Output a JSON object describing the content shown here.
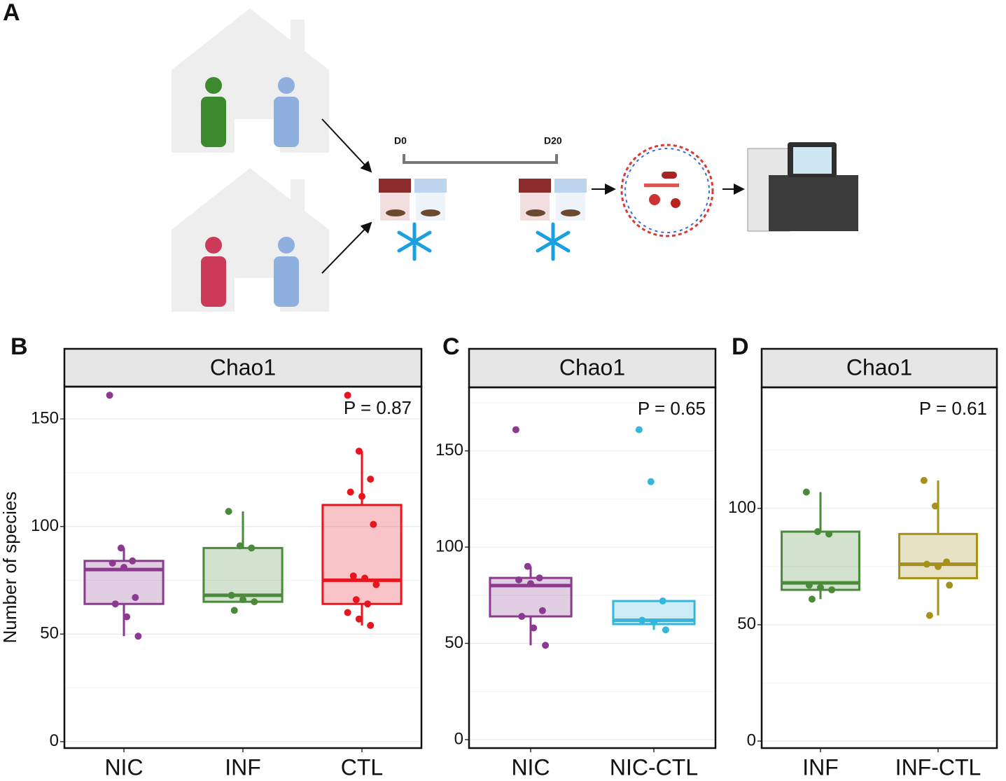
{
  "panel_a": {
    "label": "A",
    "timepoints": [
      "D0",
      "D20"
    ]
  },
  "chart_data": [
    {
      "type": "box",
      "panel_label": "B",
      "title": "Chao1",
      "annotation": "P =  0.87",
      "ylabel": "Number of species",
      "categories": [
        "NIC",
        "INF",
        "CTL"
      ],
      "colors": [
        "#8b3a8f",
        "#4a8a3a",
        "#e8141e"
      ],
      "whisker_low": [
        49,
        65,
        54
      ],
      "q1": [
        64,
        65,
        64
      ],
      "median": [
        80,
        68,
        75
      ],
      "q3": [
        84,
        90,
        110
      ],
      "whisker_high": [
        90,
        107,
        135
      ],
      "points": [
        [
          161,
          90,
          84,
          83,
          81,
          67,
          64,
          58,
          49
        ],
        [
          107,
          91,
          90,
          68,
          66,
          65,
          61
        ],
        [
          161,
          135,
          122,
          116,
          114,
          101,
          77,
          76,
          73,
          66,
          64,
          60,
          57,
          54
        ]
      ],
      "ylim": [
        -3,
        165
      ],
      "yticks": [
        0,
        50,
        100,
        150
      ],
      "yminor": [
        25,
        75,
        125
      ],
      "grid": true
    },
    {
      "type": "box",
      "panel_label": "C",
      "title": "Chao1",
      "annotation": "P =  0.65",
      "categories": [
        "NIC",
        "NIC-CTL"
      ],
      "colors": [
        "#8b3a8f",
        "#35b6dc"
      ],
      "whisker_low": [
        49,
        57
      ],
      "q1": [
        64,
        60
      ],
      "median": [
        80,
        62
      ],
      "q3": [
        84,
        72
      ],
      "whisker_high": [
        90,
        72
      ],
      "points": [
        [
          161,
          90,
          84,
          83,
          81,
          67,
          64,
          58,
          49
        ],
        [
          161,
          134,
          72,
          62,
          61,
          57
        ]
      ],
      "ylim": [
        -4.4,
        183
      ],
      "yticks": [
        0,
        50,
        100,
        150
      ],
      "yminor": [
        25,
        75,
        125,
        175
      ],
      "grid": true
    },
    {
      "type": "box",
      "panel_label": "D",
      "title": "Chao1",
      "annotation": "P =  0.61",
      "categories": [
        "INF",
        "INF-CTL"
      ],
      "colors": [
        "#4a8a3a",
        "#a6911a"
      ],
      "whisker_low": [
        61,
        54
      ],
      "q1": [
        65,
        70
      ],
      "median": [
        68,
        76
      ],
      "q3": [
        90,
        89
      ],
      "whisker_high": [
        107,
        112
      ],
      "points": [
        [
          107,
          90,
          89,
          67,
          66,
          65,
          61
        ],
        [
          112,
          101,
          77,
          76,
          75,
          67,
          54
        ]
      ],
      "ylim": [
        -3,
        152
      ],
      "yticks": [
        0,
        50,
        100
      ],
      "yminor": [
        25,
        75,
        125
      ],
      "grid": true
    }
  ]
}
